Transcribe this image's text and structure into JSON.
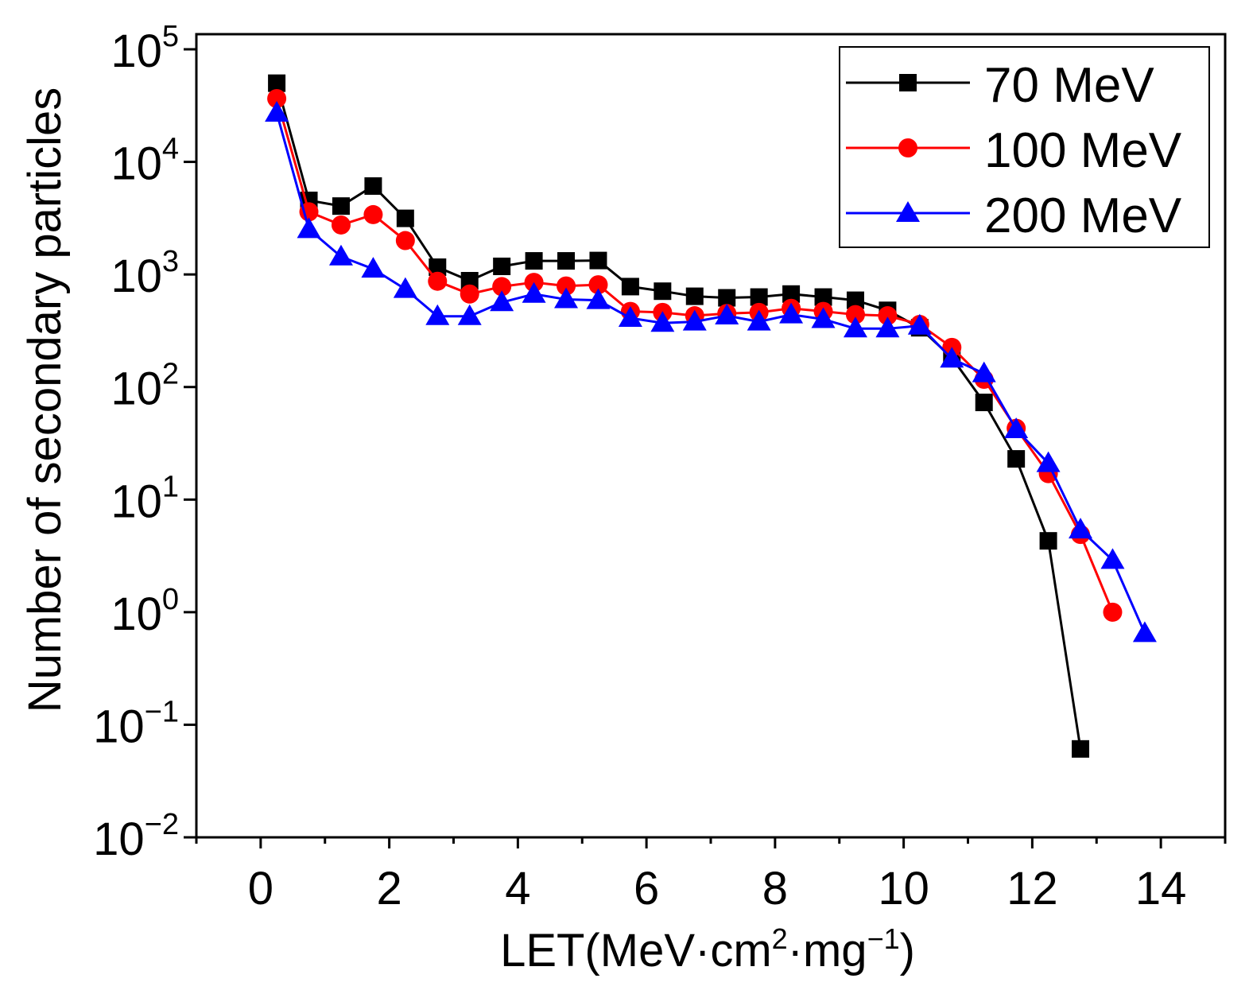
{
  "chart_data": {
    "type": "line",
    "title": "",
    "xlabel": "LET(MeV·cm²·mg⁻¹)",
    "xlabel_parts": {
      "base": "LET(MeV·cm",
      "sup1": "2",
      "mid": "·mg",
      "sup2": "−1",
      "end": ")"
    },
    "ylabel": "Number of secondary particles",
    "xlim": [
      -1,
      15
    ],
    "ylim": [
      0.01,
      100000
    ],
    "yscale": "log",
    "xticks": [
      0,
      2,
      4,
      6,
      8,
      10,
      12,
      14
    ],
    "yticks_exp": [
      -2,
      -1,
      0,
      1,
      2,
      3,
      4,
      5
    ],
    "ytick_base": "10",
    "grid": false,
    "legend_position": "top-right",
    "series": [
      {
        "name": "70 MeV",
        "color": "#000000",
        "marker": "square",
        "x": [
          0.25,
          0.75,
          1.25,
          1.75,
          2.25,
          2.75,
          3.25,
          3.75,
          4.25,
          4.75,
          5.25,
          5.75,
          6.25,
          6.75,
          7.25,
          7.75,
          8.25,
          8.75,
          9.25,
          9.75,
          10.25,
          10.75,
          11.25,
          11.75,
          12.25,
          12.75
        ],
        "values": [
          50000,
          4550,
          4050,
          6100,
          3150,
          1160,
          880,
          1180,
          1320,
          1320,
          1330,
          780,
          710,
          640,
          620,
          630,
          670,
          630,
          590,
          480,
          336,
          182,
          73,
          23,
          4.3,
          0.061
        ]
      },
      {
        "name": "100 MeV",
        "color": "#ff0000",
        "marker": "circle",
        "x": [
          0.25,
          0.75,
          1.25,
          1.75,
          2.25,
          2.75,
          3.25,
          3.75,
          4.25,
          4.75,
          5.25,
          5.75,
          6.25,
          6.75,
          7.25,
          7.75,
          8.25,
          8.75,
          9.25,
          9.75,
          10.25,
          10.75,
          11.25,
          11.75,
          12.25,
          12.75,
          13.25
        ],
        "values": [
          36500,
          3600,
          2750,
          3400,
          2000,
          870,
          670,
          780,
          850,
          790,
          810,
          470,
          460,
          430,
          450,
          460,
          500,
          470,
          440,
          430,
          360,
          225,
          117,
          43,
          17,
          4.9,
          1.0
        ]
      },
      {
        "name": "200 MeV",
        "color": "#0000ff",
        "marker": "triangle",
        "x": [
          0.25,
          0.75,
          1.25,
          1.75,
          2.25,
          2.75,
          3.25,
          3.75,
          4.25,
          4.75,
          5.25,
          5.75,
          6.25,
          6.75,
          7.25,
          7.75,
          8.25,
          8.75,
          9.25,
          9.75,
          10.25,
          10.75,
          11.25,
          11.75,
          12.25,
          12.75,
          13.25,
          13.75
        ],
        "values": [
          27200,
          2520,
          1440,
          1120,
          740,
          425,
          425,
          565,
          670,
          600,
          590,
          410,
          370,
          380,
          430,
          380,
          440,
          400,
          330,
          330,
          350,
          178,
          132,
          42,
          21,
          5.4,
          2.9,
          0.65
        ]
      }
    ]
  }
}
